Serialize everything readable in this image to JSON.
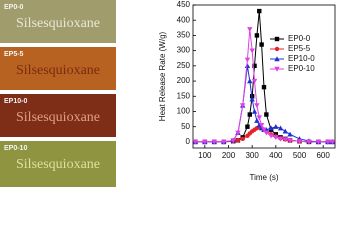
{
  "photos": [
    {
      "label": "EP0-0",
      "text": "Silsesquioxane"
    },
    {
      "label": "EP5-5",
      "text": "Silsesquioxane"
    },
    {
      "label": "EP10-0",
      "text": "Silsesquioxane"
    },
    {
      "label": "EP0-10",
      "text": "Silsesquioxane"
    }
  ],
  "chart_data": {
    "type": "line",
    "x_label": "Time (s)",
    "y_label": "Heat Release Rate (W/g)",
    "x": [
      60,
      100,
      140,
      180,
      220,
      240,
      260,
      280,
      290,
      300,
      310,
      320,
      330,
      340,
      350,
      360,
      380,
      400,
      420,
      440,
      460,
      500,
      540,
      580,
      620,
      640
    ],
    "series": [
      {
        "name": "EP0-0",
        "color": "#000000",
        "marker": "square",
        "values": [
          0,
          0,
          0,
          0,
          2,
          5,
          15,
          50,
          90,
          150,
          250,
          350,
          430,
          320,
          180,
          90,
          40,
          25,
          15,
          10,
          5,
          2,
          0,
          0,
          0,
          0
        ]
      },
      {
        "name": "EP5-5",
        "color": "#e8202a",
        "marker": "circle",
        "values": [
          0,
          0,
          0,
          0,
          2,
          5,
          10,
          20,
          28,
          35,
          40,
          45,
          48,
          45,
          40,
          35,
          25,
          18,
          12,
          8,
          5,
          2,
          0,
          0,
          0,
          0
        ]
      },
      {
        "name": "EP10-0",
        "color": "#2030d0",
        "marker": "triangle",
        "values": [
          0,
          0,
          0,
          0,
          5,
          30,
          120,
          250,
          200,
          140,
          100,
          70,
          55,
          45,
          40,
          40,
          45,
          50,
          45,
          35,
          25,
          10,
          3,
          0,
          0,
          0
        ]
      },
      {
        "name": "EP0-10",
        "color": "#e040e8",
        "marker": "triangle-down",
        "values": [
          0,
          0,
          0,
          0,
          5,
          30,
          120,
          270,
          370,
          300,
          200,
          120,
          80,
          55,
          40,
          30,
          20,
          15,
          10,
          8,
          5,
          2,
          0,
          0,
          0,
          0
        ]
      }
    ],
    "xlim": [
      50,
      650
    ],
    "xticks": [
      100,
      200,
      300,
      400,
      500,
      600
    ],
    "ylim": [
      -20,
      450
    ],
    "yticks": [
      0,
      50,
      100,
      150,
      200,
      250,
      300,
      350,
      400,
      450
    ],
    "legend": "upper right"
  }
}
